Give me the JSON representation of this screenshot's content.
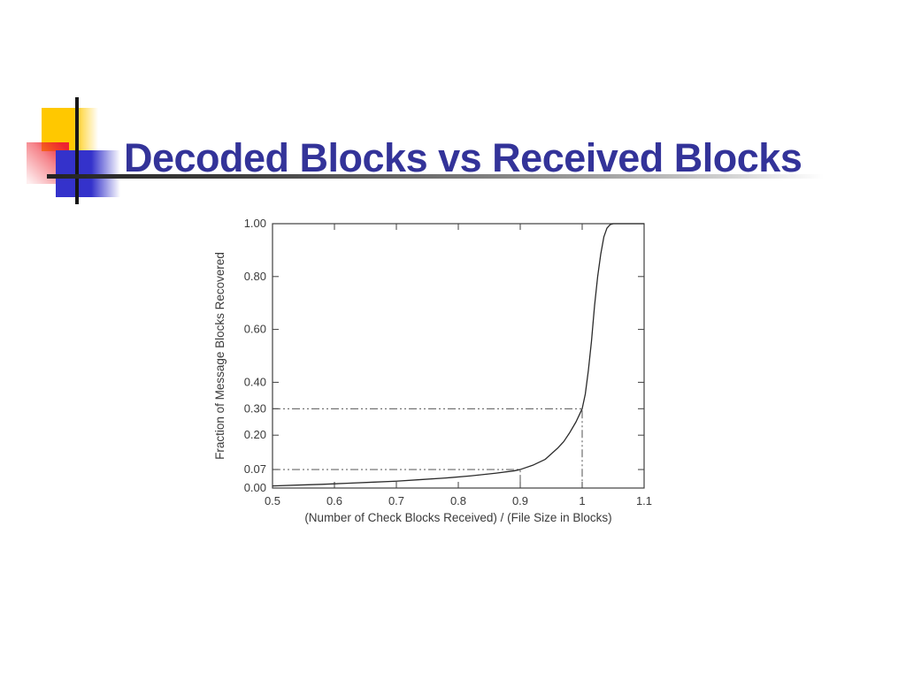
{
  "slide": {
    "title": "Decoded Blocks vs Received Blocks",
    "title_color": "#333399"
  },
  "decorations": {
    "yellow_square_color": "#ffc800",
    "red_square_color": "#ee2330",
    "blue_square_color": "#3432cb",
    "cross_line_color": "#161616",
    "rule_gradient_start": "#232323"
  },
  "chart_data": {
    "type": "line",
    "title": "",
    "xlabel": "(Number of Check Blocks Received) / (File Size in Blocks)",
    "ylabel": "Fraction of Message Blocks Recovered",
    "xlim": [
      0.5,
      1.1
    ],
    "ylim": [
      0.0,
      1.0
    ],
    "grid": false,
    "legend": "none",
    "border": "full box with mirrored inward ticks",
    "axis_color": "#3f3f3f",
    "line_color": "#2b2b2b",
    "x_ticks": [
      {
        "value": 0.5,
        "label": "0.5"
      },
      {
        "value": 0.6,
        "label": "0.6"
      },
      {
        "value": 0.7,
        "label": "0.7"
      },
      {
        "value": 0.8,
        "label": "0.8"
      },
      {
        "value": 0.9,
        "label": "0.9"
      },
      {
        "value": 1.0,
        "label": "1"
      },
      {
        "value": 1.1,
        "label": "1.1"
      }
    ],
    "y_ticks": [
      {
        "value": 0.0,
        "label": "0.00"
      },
      {
        "value": 0.07,
        "label": "0.07"
      },
      {
        "value": 0.2,
        "label": "0.20"
      },
      {
        "value": 0.3,
        "label": "0.30"
      },
      {
        "value": 0.4,
        "label": "0.40"
      },
      {
        "value": 0.6,
        "label": "0.60"
      },
      {
        "value": 0.8,
        "label": "0.80"
      },
      {
        "value": 1.0,
        "label": "1.00"
      }
    ],
    "reference_lines": [
      {
        "x": 0.9,
        "y": 0.07,
        "style": "dash-dot",
        "note": "curve reaches 0.07 recovered at 0.9 received"
      },
      {
        "x": 1.0,
        "y": 0.3,
        "style": "dash-dot",
        "note": "curve reaches 0.30 recovered at 1.0 received"
      }
    ],
    "series": [
      {
        "name": "fraction-recovered-curve",
        "points": [
          [
            0.5,
            0.008
          ],
          [
            0.54,
            0.011
          ],
          [
            0.58,
            0.014
          ],
          [
            0.62,
            0.018
          ],
          [
            0.66,
            0.022
          ],
          [
            0.7,
            0.026
          ],
          [
            0.74,
            0.032
          ],
          [
            0.78,
            0.038
          ],
          [
            0.82,
            0.046
          ],
          [
            0.86,
            0.056
          ],
          [
            0.89,
            0.065
          ],
          [
            0.9,
            0.07
          ],
          [
            0.92,
            0.086
          ],
          [
            0.94,
            0.108
          ],
          [
            0.96,
            0.15
          ],
          [
            0.97,
            0.175
          ],
          [
            0.98,
            0.21
          ],
          [
            0.99,
            0.25
          ],
          [
            1.0,
            0.3
          ],
          [
            1.005,
            0.355
          ],
          [
            1.01,
            0.445
          ],
          [
            1.015,
            0.555
          ],
          [
            1.02,
            0.69
          ],
          [
            1.025,
            0.8
          ],
          [
            1.03,
            0.885
          ],
          [
            1.035,
            0.95
          ],
          [
            1.04,
            0.983
          ],
          [
            1.045,
            0.996
          ],
          [
            1.05,
            1.0
          ],
          [
            1.06,
            1.0
          ],
          [
            1.08,
            1.0
          ],
          [
            1.1,
            1.0
          ]
        ]
      }
    ]
  }
}
